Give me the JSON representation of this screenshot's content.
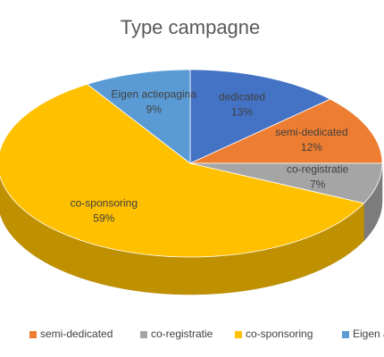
{
  "chart_data": {
    "type": "pie",
    "title": "Type campagne",
    "categories": [
      "dedicated",
      "semi-dedicated",
      "co-registratie",
      "co-sponsoring",
      "Eigen actiepagina"
    ],
    "values": [
      13,
      12,
      7,
      59,
      9
    ],
    "value_labels": [
      "13%",
      "12%",
      "7%",
      "59%",
      "9%"
    ],
    "colors": [
      "#4472c4",
      "#ed7d31",
      "#a5a5a5",
      "#ffc000",
      "#5b9bd5"
    ],
    "legend": "bottom"
  }
}
